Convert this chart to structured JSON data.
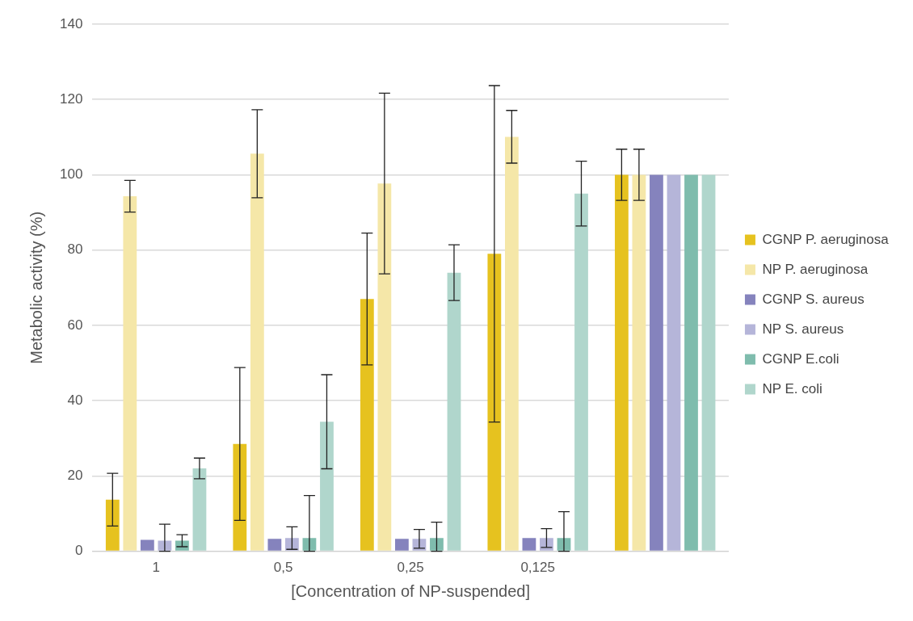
{
  "chart_data": {
    "type": "bar",
    "xlabel": "[Concentration of NP-suspended]",
    "ylabel": "Metabolic activity (%)",
    "categories": [
      "1",
      "0,5",
      "0,25",
      "0,125",
      null
    ],
    "series": [
      {
        "name": "CGNP P. aeruginosa",
        "color": "#e6c21f",
        "values": [
          13.7,
          28.5,
          67,
          79,
          100
        ],
        "errors": [
          7,
          20.3,
          17.5,
          44.7,
          6.8
        ]
      },
      {
        "name": "NP P. aeruginosa",
        "color": "#f5e7a8",
        "values": [
          94.3,
          105.6,
          97.7,
          110.1,
          100
        ],
        "errors": [
          4.2,
          11.7,
          24,
          7,
          6.8
        ]
      },
      {
        "name": "CGNP S. aureus",
        "color": "#8583bd",
        "values": [
          3,
          3.3,
          3.3,
          3.5,
          100
        ]
      },
      {
        "name": "NP S. aureus",
        "color": "#b5b5d9",
        "values": [
          2.8,
          3.5,
          3.3,
          3.5,
          100
        ],
        "errors": [
          [
            0,
            7.2
          ],
          [
            0.5,
            6.5
          ],
          [
            0.8,
            5.8
          ],
          [
            1,
            6
          ],
          null
        ]
      },
      {
        "name": "CGNP E.coli",
        "color": "#7fbcad",
        "values": [
          2.8,
          3.5,
          3.5,
          3.5,
          100
        ],
        "errors": [
          1.6,
          [
            0,
            14.8
          ],
          [
            0,
            7.7
          ],
          [
            0,
            10.5
          ],
          null
        ]
      },
      {
        "name": "NP E. coli",
        "color": "#b0d6cc",
        "values": [
          22,
          34.4,
          74,
          95,
          100
        ],
        "errors": [
          2.75,
          12.5,
          7.4,
          8.6,
          null
        ]
      }
    ],
    "ylim": [
      0,
      140
    ],
    "yticks": [
      0,
      20,
      40,
      60,
      80,
      100,
      120,
      140
    ],
    "grid": "y",
    "legend": "right"
  }
}
